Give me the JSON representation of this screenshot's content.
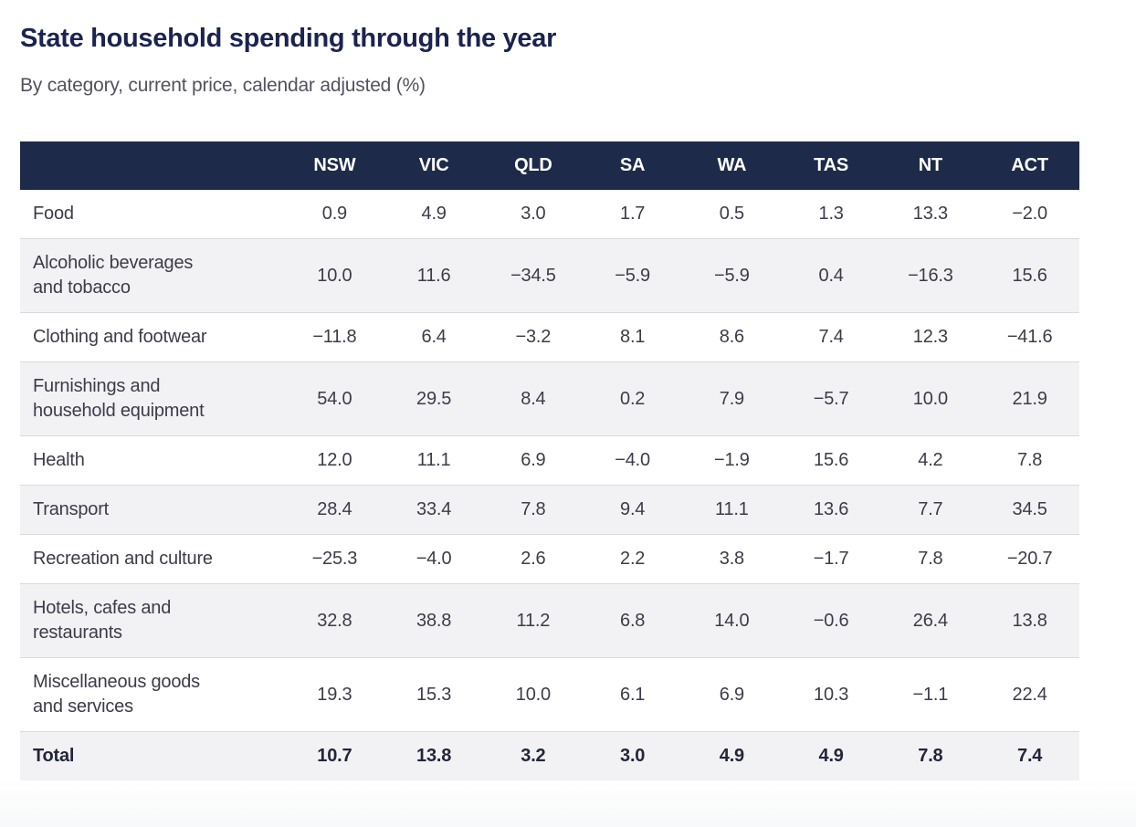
{
  "header": {
    "title": "State household spending through the year",
    "subtitle": "By category, current price, calendar adjusted (%)"
  },
  "table": {
    "columns": [
      "NSW",
      "VIC",
      "QLD",
      "SA",
      "WA",
      "TAS",
      "NT",
      "ACT"
    ],
    "rows": [
      {
        "label": "Food",
        "values": [
          "0.9",
          "4.9",
          "3.0",
          "1.7",
          "0.5",
          "1.3",
          "13.3",
          "−2.0"
        ],
        "total": false
      },
      {
        "label": "Alcoholic beverages\nand tobacco",
        "values": [
          "10.0",
          "11.6",
          "−34.5",
          "−5.9",
          "−5.9",
          "0.4",
          "−16.3",
          "15.6"
        ],
        "total": false
      },
      {
        "label": "Clothing and footwear",
        "values": [
          "−11.8",
          "6.4",
          "−3.2",
          "8.1",
          "8.6",
          "7.4",
          "12.3",
          "−41.6"
        ],
        "total": false
      },
      {
        "label": "Furnishings and\nhousehold equipment",
        "values": [
          "54.0",
          "29.5",
          "8.4",
          "0.2",
          "7.9",
          "−5.7",
          "10.0",
          "21.9"
        ],
        "total": false
      },
      {
        "label": "Health",
        "values": [
          "12.0",
          "11.1",
          "6.9",
          "−4.0",
          "−1.9",
          "15.6",
          "4.2",
          "7.8"
        ],
        "total": false
      },
      {
        "label": "Transport",
        "values": [
          "28.4",
          "33.4",
          "7.8",
          "9.4",
          "11.1",
          "13.6",
          "7.7",
          "34.5"
        ],
        "total": false
      },
      {
        "label": "Recreation and culture",
        "values": [
          "−25.3",
          "−4.0",
          "2.6",
          "2.2",
          "3.8",
          "−1.7",
          "7.8",
          "−20.7"
        ],
        "total": false
      },
      {
        "label": "Hotels, cafes and\nrestaurants",
        "values": [
          "32.8",
          "38.8",
          "11.2",
          "6.8",
          "14.0",
          "−0.6",
          "26.4",
          "13.8"
        ],
        "total": false
      },
      {
        "label": "Miscellaneous goods\nand services",
        "values": [
          "19.3",
          "15.3",
          "10.0",
          "6.1",
          "6.9",
          "10.3",
          "−1.1",
          "22.4"
        ],
        "total": false
      },
      {
        "label": "Total",
        "values": [
          "10.7",
          "13.8",
          "3.2",
          "3.0",
          "4.9",
          "4.9",
          "7.8",
          "7.4"
        ],
        "total": true
      }
    ]
  },
  "colors": {
    "header_bg": "#1e2a4a",
    "header_text": "#ffffff",
    "title_text": "#1b2350",
    "subtitle_text": "#55525e",
    "body_text": "#3c3c48",
    "total_text": "#232639",
    "row_bg": "#ffffff",
    "stripe_bg": "#f2f2f5",
    "divider": "#d9d9de"
  },
  "chart_data": {
    "type": "table",
    "title": "State household spending through the year",
    "subtitle": "By category, current price, calendar adjusted (%)",
    "unit": "%",
    "columns": [
      "NSW",
      "VIC",
      "QLD",
      "SA",
      "WA",
      "TAS",
      "NT",
      "ACT"
    ],
    "rows": [
      {
        "category": "Food",
        "values": [
          0.9,
          4.9,
          3.0,
          1.7,
          0.5,
          1.3,
          13.3,
          -2.0
        ]
      },
      {
        "category": "Alcoholic beverages and tobacco",
        "values": [
          10.0,
          11.6,
          -34.5,
          -5.9,
          -5.9,
          0.4,
          -16.3,
          15.6
        ]
      },
      {
        "category": "Clothing and footwear",
        "values": [
          -11.8,
          6.4,
          -3.2,
          8.1,
          8.6,
          7.4,
          12.3,
          -41.6
        ]
      },
      {
        "category": "Furnishings and household equipment",
        "values": [
          54.0,
          29.5,
          8.4,
          0.2,
          7.9,
          -5.7,
          10.0,
          21.9
        ]
      },
      {
        "category": "Health",
        "values": [
          12.0,
          11.1,
          6.9,
          -4.0,
          -1.9,
          15.6,
          4.2,
          7.8
        ]
      },
      {
        "category": "Transport",
        "values": [
          28.4,
          33.4,
          7.8,
          9.4,
          11.1,
          13.6,
          7.7,
          34.5
        ]
      },
      {
        "category": "Recreation and culture",
        "values": [
          -25.3,
          -4.0,
          2.6,
          2.2,
          3.8,
          -1.7,
          7.8,
          -20.7
        ]
      },
      {
        "category": "Hotels, cafes and restaurants",
        "values": [
          32.8,
          38.8,
          11.2,
          6.8,
          14.0,
          -0.6,
          26.4,
          13.8
        ]
      },
      {
        "category": "Miscellaneous goods and services",
        "values": [
          19.3,
          15.3,
          10.0,
          6.1,
          6.9,
          10.3,
          -1.1,
          22.4
        ]
      },
      {
        "category": "Total",
        "values": [
          10.7,
          13.8,
          3.2,
          3.0,
          4.9,
          4.9,
          7.8,
          7.4
        ]
      }
    ]
  }
}
